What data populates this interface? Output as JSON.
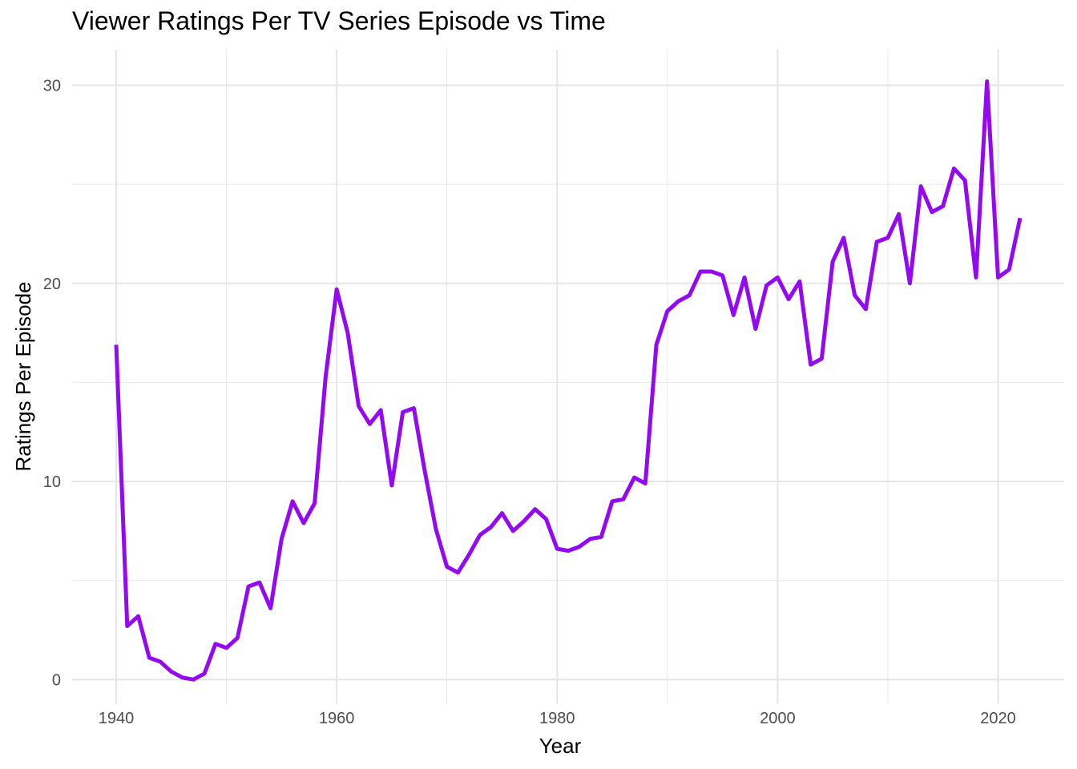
{
  "chart_data": {
    "type": "line",
    "title": "Viewer Ratings Per TV Series Episode vs Time",
    "xlabel": "Year",
    "ylabel": "Ratings Per Episode",
    "xlim": [
      1936,
      2026
    ],
    "ylim": [
      -1.2,
      31.8
    ],
    "x_ticks": [
      1940,
      1960,
      1980,
      2000,
      2020
    ],
    "y_ticks": [
      0,
      10,
      20,
      30
    ],
    "grid": true,
    "legend": "none",
    "line_color": "#9309F0",
    "series": [
      {
        "x": [
          1940,
          1941,
          1942,
          1943,
          1944,
          1945,
          1946,
          1947,
          1948,
          1949,
          1950,
          1951,
          1952,
          1953,
          1954,
          1955,
          1956,
          1957,
          1958,
          1959,
          1960,
          1961,
          1962,
          1963,
          1964,
          1965,
          1966,
          1967,
          1968,
          1969,
          1970,
          1971,
          1972,
          1973,
          1974,
          1975,
          1976,
          1977,
          1978,
          1979,
          1980,
          1981,
          1982,
          1983,
          1984,
          1985,
          1986,
          1987,
          1988,
          1989,
          1990,
          1991,
          1992,
          1993,
          1994,
          1995,
          1996,
          1997,
          1998,
          1999,
          2000,
          2001,
          2002,
          2003,
          2004,
          2005,
          2006,
          2007,
          2008,
          2009,
          2010,
          2011,
          2012,
          2013,
          2014,
          2015,
          2016,
          2017,
          2018,
          2019,
          2020,
          2021,
          2022
        ],
        "values": [
          16.9,
          2.7,
          3.2,
          1.1,
          0.9,
          0.4,
          0.1,
          0.0,
          0.3,
          1.8,
          1.6,
          2.1,
          4.7,
          4.9,
          3.6,
          7.1,
          9.0,
          7.9,
          8.9,
          15.3,
          19.7,
          17.5,
          13.8,
          12.9,
          13.6,
          9.8,
          13.5,
          13.7,
          10.5,
          7.6,
          5.7,
          5.4,
          6.3,
          7.3,
          7.7,
          8.4,
          7.5,
          8.0,
          8.6,
          8.1,
          6.6,
          6.5,
          6.7,
          7.1,
          7.2,
          9.0,
          9.1,
          10.2,
          9.9,
          16.9,
          18.6,
          19.1,
          19.4,
          20.6,
          20.6,
          20.4,
          18.4,
          20.3,
          17.7,
          19.9,
          20.3,
          19.2,
          20.1,
          15.9,
          16.2,
          21.1,
          22.3,
          19.4,
          18.7,
          22.1,
          22.3,
          23.5,
          20.0,
          24.9,
          23.6,
          23.9,
          25.8,
          25.2,
          20.3,
          30.2,
          20.3,
          20.7,
          23.3
        ]
      }
    ]
  }
}
